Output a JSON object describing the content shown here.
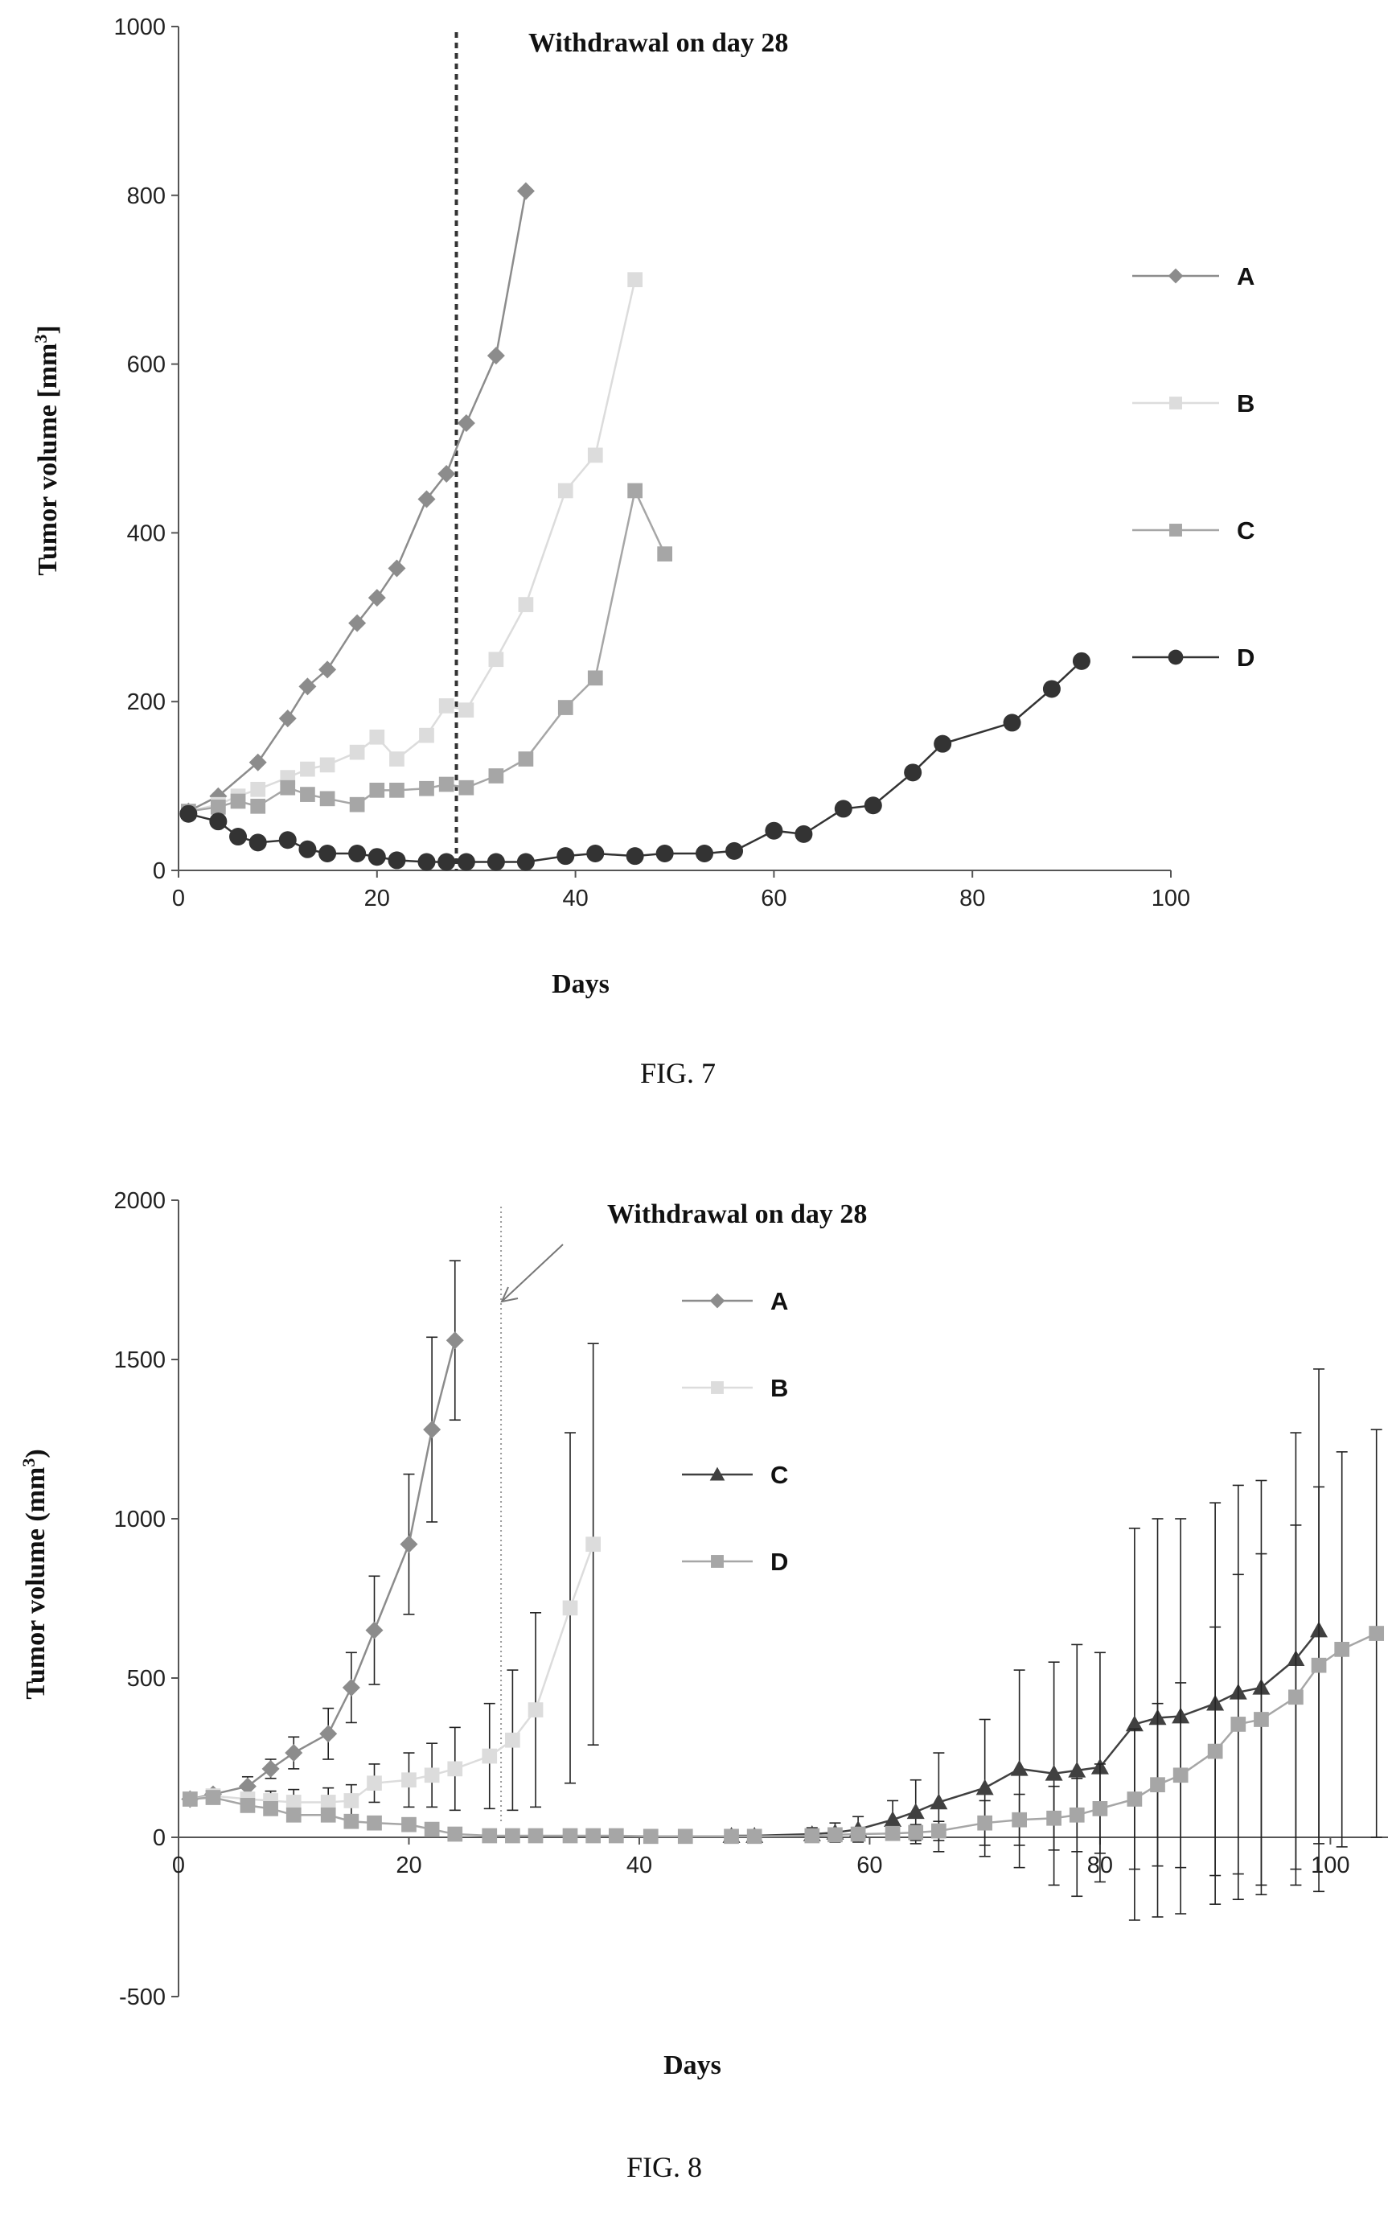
{
  "chart_data": [
    {
      "type": "line",
      "figure_label": "FIG. 7",
      "annotation": "Withdrawal on day 28",
      "withdrawal_day": 28,
      "xlabel": "Days",
      "ylabel": "Tumor volume [mm",
      "ylabel_sup": "3",
      "ylabel_end": "]",
      "xlim": [
        0,
        100
      ],
      "ylim": [
        0,
        1000
      ],
      "xticks": [
        0,
        20,
        40,
        60,
        80,
        100
      ],
      "yticks": [
        0,
        200,
        400,
        600,
        800,
        1000
      ],
      "legend_position": "right",
      "series": [
        {
          "name": "A",
          "color": "#8c8c8c",
          "marker": "diamond",
          "x": [
            1,
            4,
            8,
            11,
            13,
            15,
            18,
            20,
            22,
            25,
            27,
            29,
            32,
            35
          ],
          "y": [
            70,
            88,
            128,
            180,
            218,
            238,
            293,
            323,
            358,
            440,
            470,
            530,
            610,
            805
          ]
        },
        {
          "name": "B",
          "color": "#dcdcdc",
          "marker": "square",
          "x": [
            1,
            4,
            6,
            8,
            11,
            13,
            15,
            18,
            20,
            22,
            25,
            27,
            29,
            32,
            35,
            39,
            42,
            46
          ],
          "y": [
            70,
            78,
            88,
            96,
            110,
            120,
            125,
            140,
            158,
            132,
            160,
            195,
            190,
            250,
            315,
            450,
            492,
            700
          ]
        },
        {
          "name": "C",
          "color": "#a6a6a6",
          "marker": "square",
          "x": [
            1,
            4,
            6,
            8,
            11,
            13,
            15,
            18,
            20,
            22,
            25,
            27,
            29,
            32,
            35,
            39,
            42,
            46,
            49
          ],
          "y": [
            70,
            75,
            82,
            76,
            98,
            90,
            85,
            78,
            95,
            95,
            97,
            102,
            98,
            112,
            132,
            193,
            228,
            450,
            375
          ]
        },
        {
          "name": "D",
          "color": "#333333",
          "marker": "circle",
          "x": [
            1,
            4,
            6,
            8,
            11,
            13,
            15,
            18,
            20,
            22,
            25,
            27,
            29,
            32,
            35,
            39,
            42,
            46,
            49,
            53,
            56,
            60,
            63,
            67,
            70,
            74,
            77,
            84,
            88,
            91
          ],
          "y": [
            67,
            58,
            40,
            33,
            36,
            25,
            20,
            20,
            16,
            12,
            10,
            10,
            10,
            10,
            10,
            17,
            20,
            17,
            20,
            20,
            23,
            47,
            43,
            73,
            77,
            116,
            150,
            175,
            215,
            248
          ]
        }
      ]
    },
    {
      "type": "line",
      "figure_label": "FIG. 8",
      "annotation": "Withdrawal on day 28",
      "withdrawal_day": 28,
      "xlabel": "Days",
      "ylabel": "Tumor volume (mm",
      "ylabel_sup": "3",
      "ylabel_end": ")",
      "xlim": [
        0,
        105
      ],
      "ylim": [
        -500,
        2000
      ],
      "xticks": [
        0,
        20,
        40,
        60,
        80,
        100
      ],
      "yticks": [
        -500,
        0,
        500,
        1000,
        1500,
        2000
      ],
      "legend_position": "top-center",
      "series": [
        {
          "name": "A",
          "color": "#8c8c8c",
          "marker": "diamond",
          "x": [
            1,
            3,
            6,
            8,
            10,
            13,
            15,
            17,
            20,
            22,
            24
          ],
          "y": [
            120,
            135,
            160,
            215,
            265,
            325,
            470,
            650,
            920,
            1280,
            1560
          ],
          "err": [
            15,
            15,
            30,
            30,
            50,
            80,
            110,
            170,
            220,
            290,
            250
          ]
        },
        {
          "name": "B",
          "color": "#dcdcdc",
          "marker": "square",
          "x": [
            1,
            3,
            6,
            8,
            10,
            13,
            15,
            17,
            20,
            22,
            24,
            27,
            29,
            31,
            34,
            36
          ],
          "y": [
            120,
            130,
            120,
            115,
            110,
            110,
            115,
            170,
            180,
            195,
            215,
            255,
            305,
            400,
            720,
            920
          ],
          "err": [
            10,
            15,
            20,
            30,
            40,
            45,
            50,
            60,
            85,
            100,
            130,
            165,
            220,
            305,
            550,
            630
          ]
        },
        {
          "name": "C",
          "color": "#404040",
          "marker": "triangle",
          "x": [
            48,
            50,
            55,
            57,
            59,
            62,
            64,
            66,
            70,
            73,
            76,
            78,
            80,
            83,
            85,
            87,
            90,
            92,
            94,
            97,
            99
          ],
          "y": [
            5,
            5,
            10,
            15,
            25,
            55,
            80,
            110,
            155,
            215,
            200,
            210,
            220,
            355,
            375,
            380,
            420,
            455,
            470,
            560,
            650
          ],
          "err": [
            10,
            15,
            20,
            30,
            40,
            60,
            100,
            155,
            215,
            310,
            350,
            395,
            360,
            615,
            625,
            620,
            630,
            650,
            650,
            710,
            820
          ]
        },
        {
          "name": "D",
          "color": "#a6a6a6",
          "marker": "square",
          "x": [
            1,
            3,
            6,
            8,
            10,
            13,
            15,
            17,
            20,
            22,
            24,
            27,
            29,
            31,
            34,
            36,
            38,
            41,
            44,
            48,
            50,
            55,
            57,
            59,
            62,
            64,
            66,
            70,
            73,
            76,
            78,
            80,
            83,
            85,
            87,
            90,
            92,
            94,
            97,
            99,
            101,
            104
          ],
          "y": [
            120,
            125,
            100,
            90,
            70,
            70,
            50,
            45,
            40,
            25,
            10,
            5,
            5,
            5,
            5,
            5,
            5,
            3,
            3,
            3,
            3,
            5,
            8,
            10,
            12,
            15,
            20,
            45,
            55,
            60,
            70,
            90,
            120,
            165,
            195,
            270,
            355,
            370,
            440,
            540,
            590,
            640
          ],
          "err": [
            5,
            5,
            10,
            10,
            10,
            10,
            10,
            10,
            10,
            10,
            10,
            10,
            10,
            10,
            10,
            10,
            10,
            5,
            5,
            5,
            5,
            10,
            10,
            10,
            20,
            25,
            30,
            70,
            80,
            100,
            115,
            140,
            220,
            255,
            290,
            390,
            470,
            520,
            540,
            560,
            620,
            640
          ]
        }
      ]
    }
  ]
}
